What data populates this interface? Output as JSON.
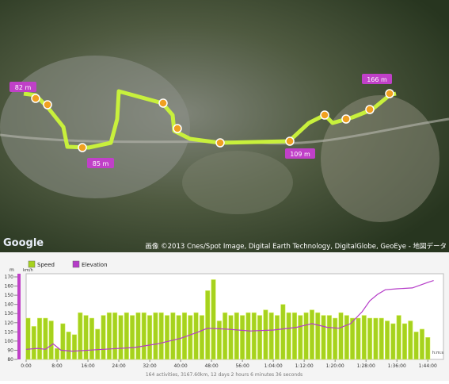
{
  "map": {
    "markers": [
      "82 m",
      "85 m",
      "109 m",
      "166 m"
    ],
    "attribution": "画像 ©2013 Cnes/Spot Image, Digital Earth Technology, DigitalGlobe, GeoEye - 地図データ",
    "logo": "Google"
  },
  "chart_data": {
    "type": "bar",
    "legend": [
      "Speed",
      "Elevation"
    ],
    "y_label": "m",
    "y2_label": "km/h",
    "x_label": "h:m:s",
    "x": [
      0.5,
      2,
      3.5,
      5,
      6.5,
      8,
      9.5,
      11,
      12.5,
      14,
      15.5,
      17,
      18.5,
      20,
      21.5,
      23,
      24.5,
      26,
      27.5,
      29,
      30.5,
      32,
      33.5,
      35,
      36.5,
      38,
      39.5,
      41,
      42.5,
      44,
      45.5,
      47,
      48.5,
      50,
      51.5,
      53,
      54.5,
      56,
      57.5,
      59,
      60.5,
      62,
      63.5,
      65,
      66.5,
      68,
      69.5,
      71,
      72.5,
      74,
      75.5,
      77,
      78.5,
      80,
      81.5,
      83,
      84.5,
      86,
      87.5,
      89,
      90.5,
      92,
      93.5,
      95,
      96.5,
      98,
      99.5,
      101,
      102.5,
      104
    ],
    "series": [
      {
        "name": "Speed",
        "color": "#a6d21e",
        "axis": "y2",
        "values": [
          15,
          12,
          15,
          15,
          14,
          4,
          13,
          10,
          9,
          17,
          16,
          15,
          11,
          16,
          17,
          17,
          16,
          17,
          16,
          17,
          17,
          16,
          17,
          17,
          16,
          17,
          16,
          17,
          16,
          17,
          16,
          25,
          29,
          14,
          17,
          16,
          17,
          16,
          17,
          17,
          16,
          18,
          17,
          16,
          20,
          17,
          17,
          16,
          17,
          18,
          17,
          16,
          16,
          15,
          17,
          16,
          15,
          15,
          16,
          15,
          15,
          15,
          14,
          13,
          16,
          13,
          14,
          10,
          11,
          8
        ]
      },
      {
        "name": "Elevation",
        "color": "#b53cc8",
        "x": [
          0,
          3,
          5,
          7,
          9,
          12,
          20,
          28,
          34,
          40,
          44,
          47,
          52,
          58,
          64,
          70,
          74,
          78,
          81,
          84,
          87,
          89,
          91,
          93,
          96,
          100,
          102,
          104,
          105.5
        ],
        "values": [
          91,
          92,
          91,
          97,
          90,
          89,
          91,
          93,
          97,
          103,
          109,
          114,
          113,
          111,
          112,
          115,
          119,
          115,
          114,
          119,
          132,
          144,
          151,
          156,
          157,
          158,
          161,
          164,
          166
        ]
      }
    ],
    "xlim": [
      0,
      106
    ],
    "xticks": [
      {
        "value": 0,
        "label": "0:00"
      },
      {
        "value": 8,
        "label": "8:00"
      },
      {
        "value": 16,
        "label": "16:00"
      },
      {
        "value": 24,
        "label": "24:00"
      },
      {
        "value": 32,
        "label": "32:00"
      },
      {
        "value": 40,
        "label": "40:00"
      },
      {
        "value": 48,
        "label": "48:00"
      },
      {
        "value": 56,
        "label": "56:00"
      },
      {
        "value": 64,
        "label": "1:04:00"
      },
      {
        "value": 72,
        "label": "1:12:00"
      },
      {
        "value": 80,
        "label": "1:20:00"
      },
      {
        "value": 88,
        "label": "1:28:00"
      },
      {
        "value": 96,
        "label": "1:36:00"
      },
      {
        "value": 104,
        "label": "1:44:00"
      }
    ],
    "ylim": [
      80,
      170
    ],
    "yticks": [
      80,
      90,
      100,
      110,
      120,
      130,
      140,
      150,
      160,
      170
    ],
    "y2lim": [
      0,
      30
    ],
    "summary": "164 activities, 3167.60km, 12 days 2 hours 6 minutes 36 seconds"
  }
}
